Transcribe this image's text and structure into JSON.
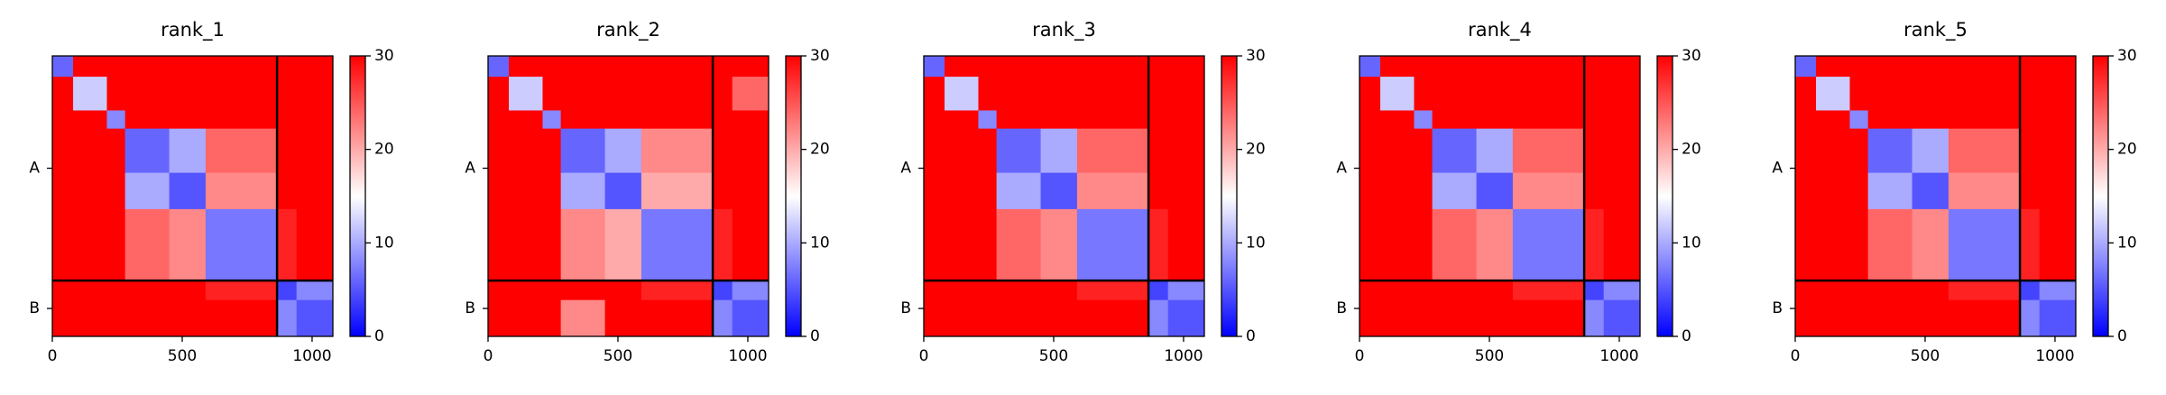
{
  "chart_data": [
    {
      "type": "heatmap",
      "title": "rank_1",
      "xlim": [
        0,
        1080
      ],
      "ylim": [
        1080,
        0
      ],
      "xticks": [
        0,
        500,
        1000
      ],
      "chains": [
        {
          "name": "A",
          "length": 865
        },
        {
          "name": "B",
          "length": 215
        }
      ],
      "bins": [
        0,
        80,
        210,
        280,
        450,
        590,
        865,
        940,
        1080
      ],
      "values": [
        [
          6,
          30,
          30,
          30,
          30,
          30,
          30,
          30
        ],
        [
          30,
          12,
          30,
          30,
          30,
          30,
          30,
          30
        ],
        [
          30,
          30,
          8,
          30,
          30,
          30,
          30,
          30
        ],
        [
          30,
          30,
          30,
          6,
          10,
          24,
          30,
          30
        ],
        [
          30,
          30,
          30,
          10,
          5,
          22,
          30,
          30
        ],
        [
          30,
          30,
          30,
          24,
          22,
          7,
          28,
          30
        ],
        [
          30,
          30,
          30,
          30,
          30,
          28,
          4,
          8
        ],
        [
          30,
          30,
          30,
          30,
          30,
          30,
          8,
          5
        ]
      ],
      "colormap": [
        "#0000ff",
        "#ffffff",
        "#ff0000"
      ],
      "clim": [
        0,
        30
      ],
      "cbar_ticks": [
        0,
        10,
        20,
        30
      ]
    },
    {
      "type": "heatmap",
      "title": "rank_2",
      "xlim": [
        0,
        1080
      ],
      "ylim": [
        1080,
        0
      ],
      "xticks": [
        0,
        500,
        1000
      ],
      "chains": [
        {
          "name": "A",
          "length": 865
        },
        {
          "name": "B",
          "length": 215
        }
      ],
      "bins": [
        0,
        80,
        210,
        280,
        450,
        590,
        865,
        940,
        1080
      ],
      "values": [
        [
          6,
          30,
          30,
          30,
          30,
          30,
          30,
          30
        ],
        [
          30,
          12,
          30,
          30,
          30,
          30,
          30,
          24
        ],
        [
          30,
          30,
          8,
          30,
          30,
          30,
          30,
          30
        ],
        [
          30,
          30,
          30,
          6,
          10,
          22,
          30,
          30
        ],
        [
          30,
          30,
          30,
          10,
          5,
          20,
          30,
          30
        ],
        [
          30,
          30,
          30,
          22,
          20,
          7,
          28,
          30
        ],
        [
          30,
          30,
          30,
          30,
          30,
          28,
          4,
          8
        ],
        [
          30,
          30,
          30,
          22,
          30,
          30,
          8,
          5
        ]
      ],
      "colormap": [
        "#0000ff",
        "#ffffff",
        "#ff0000"
      ],
      "clim": [
        0,
        30
      ],
      "cbar_ticks": [
        0,
        10,
        20,
        30
      ]
    },
    {
      "type": "heatmap",
      "title": "rank_3",
      "xlim": [
        0,
        1080
      ],
      "ylim": [
        1080,
        0
      ],
      "xticks": [
        0,
        500,
        1000
      ],
      "chains": [
        {
          "name": "A",
          "length": 865
        },
        {
          "name": "B",
          "length": 215
        }
      ],
      "bins": [
        0,
        80,
        210,
        280,
        450,
        590,
        865,
        940,
        1080
      ],
      "values": [
        [
          6,
          30,
          30,
          30,
          30,
          30,
          30,
          30
        ],
        [
          30,
          12,
          30,
          30,
          30,
          30,
          30,
          30
        ],
        [
          30,
          30,
          8,
          30,
          30,
          30,
          30,
          30
        ],
        [
          30,
          30,
          30,
          6,
          10,
          24,
          30,
          30
        ],
        [
          30,
          30,
          30,
          10,
          5,
          22,
          30,
          30
        ],
        [
          30,
          30,
          30,
          24,
          22,
          7,
          28,
          30
        ],
        [
          30,
          30,
          30,
          30,
          30,
          28,
          4,
          8
        ],
        [
          30,
          30,
          30,
          30,
          30,
          30,
          8,
          5
        ]
      ],
      "colormap": [
        "#0000ff",
        "#ffffff",
        "#ff0000"
      ],
      "clim": [
        0,
        30
      ],
      "cbar_ticks": [
        0,
        10,
        20,
        30
      ]
    },
    {
      "type": "heatmap",
      "title": "rank_4",
      "xlim": [
        0,
        1080
      ],
      "ylim": [
        1080,
        0
      ],
      "xticks": [
        0,
        500,
        1000
      ],
      "chains": [
        {
          "name": "A",
          "length": 865
        },
        {
          "name": "B",
          "length": 215
        }
      ],
      "bins": [
        0,
        80,
        210,
        280,
        450,
        590,
        865,
        940,
        1080
      ],
      "values": [
        [
          6,
          30,
          30,
          30,
          30,
          30,
          30,
          30
        ],
        [
          30,
          12,
          30,
          30,
          30,
          30,
          30,
          30
        ],
        [
          30,
          30,
          8,
          30,
          30,
          30,
          30,
          30
        ],
        [
          30,
          30,
          30,
          6,
          10,
          24,
          30,
          30
        ],
        [
          30,
          30,
          30,
          10,
          5,
          22,
          30,
          30
        ],
        [
          30,
          30,
          30,
          24,
          22,
          7,
          28,
          30
        ],
        [
          30,
          30,
          30,
          30,
          30,
          28,
          4,
          8
        ],
        [
          30,
          30,
          30,
          30,
          30,
          30,
          8,
          5
        ]
      ],
      "colormap": [
        "#0000ff",
        "#ffffff",
        "#ff0000"
      ],
      "clim": [
        0,
        30
      ],
      "cbar_ticks": [
        0,
        10,
        20,
        30
      ]
    },
    {
      "type": "heatmap",
      "title": "rank_5",
      "xlim": [
        0,
        1080
      ],
      "ylim": [
        1080,
        0
      ],
      "xticks": [
        0,
        500,
        1000
      ],
      "chains": [
        {
          "name": "A",
          "length": 865
        },
        {
          "name": "B",
          "length": 215
        }
      ],
      "bins": [
        0,
        80,
        210,
        280,
        450,
        590,
        865,
        940,
        1080
      ],
      "values": [
        [
          6,
          30,
          30,
          30,
          30,
          30,
          30,
          30
        ],
        [
          30,
          12,
          30,
          30,
          30,
          30,
          30,
          30
        ],
        [
          30,
          30,
          8,
          30,
          30,
          30,
          30,
          30
        ],
        [
          30,
          30,
          30,
          6,
          10,
          24,
          30,
          30
        ],
        [
          30,
          30,
          30,
          10,
          5,
          22,
          30,
          30
        ],
        [
          30,
          30,
          30,
          24,
          22,
          7,
          28,
          30
        ],
        [
          30,
          30,
          30,
          30,
          30,
          28,
          4,
          8
        ],
        [
          30,
          30,
          30,
          30,
          30,
          30,
          8,
          5
        ]
      ],
      "colormap": [
        "#0000ff",
        "#ffffff",
        "#ff0000"
      ],
      "clim": [
        0,
        30
      ],
      "cbar_ticks": [
        0,
        10,
        20,
        30
      ]
    }
  ]
}
